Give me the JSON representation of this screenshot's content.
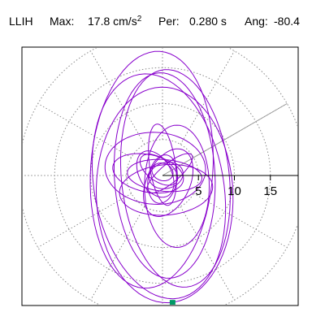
{
  "header": {
    "station": "LLIH",
    "max_label": "Max:",
    "max_value": "17.8",
    "max_unit": "cm/s",
    "max_unit_exp": "2",
    "per_label": "Per:",
    "per_value": "0.280 s",
    "ang_label": "Ang:",
    "ang_value": "-80.4"
  },
  "chart_data": {
    "type": "line",
    "subtype": "polar-particle-motion",
    "title": "",
    "xlabel": "",
    "ylabel": "",
    "radial_ticks": [
      5,
      10,
      15
    ],
    "radial_tick_labels": [
      "5",
      "10",
      "15"
    ],
    "rlim": [
      0,
      20
    ],
    "max_amplitude": 17.8,
    "period_s": 0.28,
    "angle_deg": -80.4,
    "grid": true,
    "grid_rings": [
      5,
      10,
      15,
      20
    ],
    "grid_spokes_deg": [
      0,
      30,
      60,
      90,
      120,
      150,
      180,
      210,
      240,
      270,
      300,
      330
    ],
    "angle_line_deg": 30,
    "trace_color": "#8800cc",
    "end_marker_color": "#009966",
    "end_point": [
      1.4,
      -17.7
    ],
    "trace": [
      {
        "cx": 0.0,
        "cy": 0.5,
        "a": 1.5,
        "b": 1.2,
        "rot": 20
      },
      {
        "cx": 0.5,
        "cy": 0.0,
        "a": 2.4,
        "b": 1.8,
        "rot": -15
      },
      {
        "cx": -0.5,
        "cy": 0.8,
        "a": 3.0,
        "b": 1.6,
        "rot": 35
      },
      {
        "cx": 0.0,
        "cy": -0.5,
        "a": 2.0,
        "b": 3.4,
        "rot": 10
      },
      {
        "cx": 1.0,
        "cy": 0.3,
        "a": 4.0,
        "b": 1.3,
        "rot": -40
      },
      {
        "cx": -1.0,
        "cy": 0.2,
        "a": 3.5,
        "b": 2.2,
        "rot": 60
      },
      {
        "cx": 0.3,
        "cy": 0.0,
        "a": 5.2,
        "b": 2.2,
        "rot": 5
      },
      {
        "cx": 0.0,
        "cy": 1.5,
        "a": 1.8,
        "b": 5.7,
        "rot": -8
      },
      {
        "cx": -2.0,
        "cy": 0.3,
        "a": 5.0,
        "b": 2.6,
        "rot": 12
      },
      {
        "cx": 0.8,
        "cy": -1.0,
        "a": 3.0,
        "b": 5.0,
        "rot": 25
      },
      {
        "cx": 0.5,
        "cy": -2.0,
        "a": 6.5,
        "b": 3.5,
        "rot": -5
      },
      {
        "cx": 2.0,
        "cy": -1.5,
        "a": 4.5,
        "b": 8.5,
        "rot": 0
      },
      {
        "cx": -1.0,
        "cy": 1.0,
        "a": 7.0,
        "b": 5.0,
        "rot": 3
      },
      {
        "cx": 0.3,
        "cy": 0.0,
        "a": 7.0,
        "b": 14.3,
        "rot": -3
      },
      {
        "cx": 1.8,
        "cy": -0.4,
        "a": 7.5,
        "b": 15.2,
        "rot": -6
      },
      {
        "cx": -1.5,
        "cy": 0.8,
        "a": 8.5,
        "b": 16.5,
        "rot": 4
      },
      {
        "cx": -0.5,
        "cy": -1.5,
        "a": 9.0,
        "b": 15.8,
        "rot": -10
      },
      {
        "cx": 0.3,
        "cy": -2.7,
        "a": 9.5,
        "b": 15.0,
        "rot": -2
      }
    ]
  }
}
